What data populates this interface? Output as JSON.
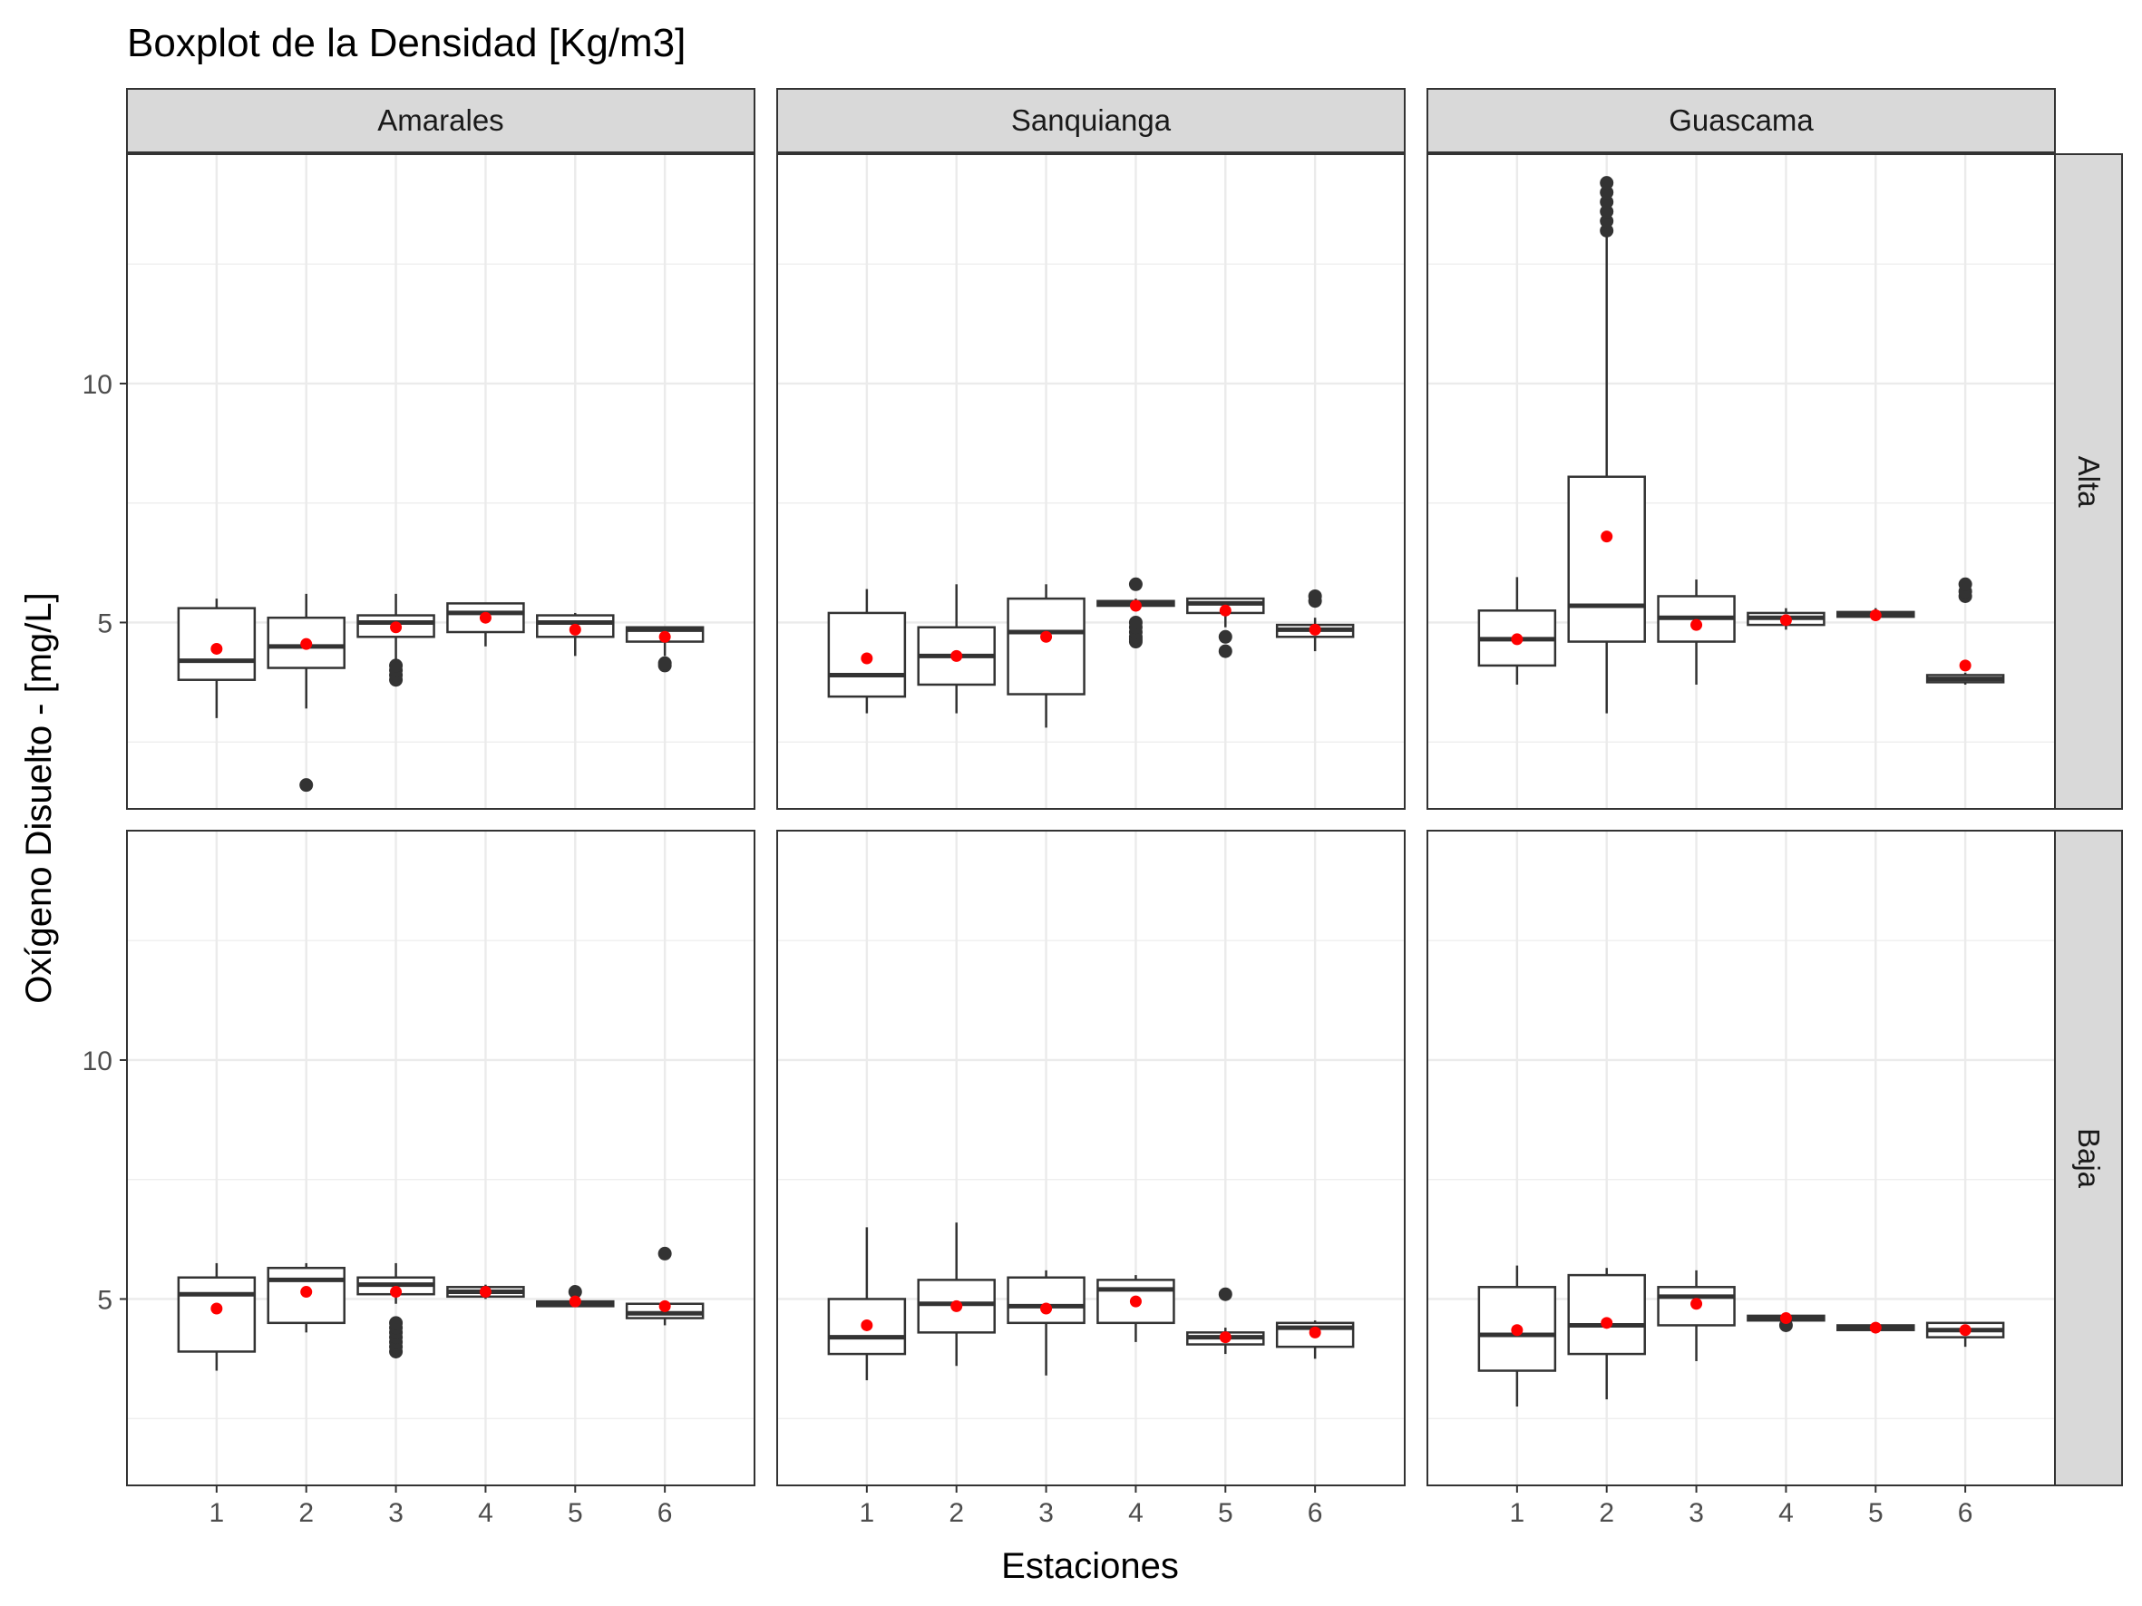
{
  "chart_data": {
    "type": "boxplot",
    "title": "Boxplot de la Densidad [Kg/m3]",
    "xlabel": "Estaciones",
    "ylabel": "Oxígeno Disuelto - [mg/L]",
    "categories": [
      "1",
      "2",
      "3",
      "4",
      "5",
      "6"
    ],
    "yticks": [
      5,
      10
    ],
    "ylim": [
      1.1,
      14.8
    ],
    "columns": [
      "Amarales",
      "Sanquianga",
      "Guascama"
    ],
    "rows": [
      "Alta",
      "Baja"
    ],
    "grid": true,
    "colors": {
      "mean": "#ff0000",
      "box": "#333333",
      "outlier": "#333333",
      "strip": "#d9d9d9",
      "grid": "#ebebeb"
    },
    "panels": [
      {
        "column": "Amarales",
        "row": "Alta",
        "boxes": [
          {
            "station": "1",
            "min": 3.0,
            "q1": 3.8,
            "median": 4.2,
            "q3": 5.3,
            "max": 5.5,
            "mean": 4.45,
            "outliers": []
          },
          {
            "station": "2",
            "min": 3.2,
            "q1": 4.05,
            "median": 4.5,
            "q3": 5.1,
            "max": 5.6,
            "mean": 4.55,
            "outliers": [
              1.6
            ]
          },
          {
            "station": "3",
            "min": 4.2,
            "q1": 4.7,
            "median": 5.0,
            "q3": 5.15,
            "max": 5.6,
            "mean": 4.9,
            "outliers": [
              3.8,
              3.9,
              4.0,
              4.1
            ]
          },
          {
            "station": "4",
            "min": 4.5,
            "q1": 4.8,
            "median": 5.2,
            "q3": 5.4,
            "max": 5.4,
            "mean": 5.1,
            "outliers": []
          },
          {
            "station": "5",
            "min": 4.3,
            "q1": 4.7,
            "median": 5.0,
            "q3": 5.15,
            "max": 5.2,
            "mean": 4.85,
            "outliers": []
          },
          {
            "station": "6",
            "min": 4.3,
            "q1": 4.6,
            "median": 4.85,
            "q3": 4.9,
            "max": 4.9,
            "mean": 4.7,
            "outliers": [
              4.1,
              4.15
            ]
          }
        ]
      },
      {
        "column": "Sanquianga",
        "row": "Alta",
        "boxes": [
          {
            "station": "1",
            "min": 3.1,
            "q1": 3.45,
            "median": 3.9,
            "q3": 5.2,
            "max": 5.7,
            "mean": 4.25,
            "outliers": []
          },
          {
            "station": "2",
            "min": 3.1,
            "q1": 3.7,
            "median": 4.3,
            "q3": 4.9,
            "max": 5.8,
            "mean": 4.3,
            "outliers": []
          },
          {
            "station": "3",
            "min": 2.8,
            "q1": 3.5,
            "median": 4.8,
            "q3": 5.5,
            "max": 5.8,
            "mean": 4.7,
            "outliers": []
          },
          {
            "station": "4",
            "min": 5.3,
            "q1": 5.35,
            "median": 5.4,
            "q3": 5.45,
            "max": 5.5,
            "mean": 5.35,
            "outliers": [
              4.6,
              4.65,
              4.7,
              4.8,
              4.9,
              5.0,
              5.8
            ]
          },
          {
            "station": "5",
            "min": 4.9,
            "q1": 5.2,
            "median": 5.4,
            "q3": 5.5,
            "max": 5.5,
            "mean": 5.25,
            "outliers": [
              4.4,
              4.7
            ]
          },
          {
            "station": "6",
            "min": 4.4,
            "q1": 4.7,
            "median": 4.85,
            "q3": 4.95,
            "max": 5.1,
            "mean": 4.85,
            "outliers": [
              5.45,
              5.55
            ]
          }
        ]
      },
      {
        "column": "Guascama",
        "row": "Alta",
        "boxes": [
          {
            "station": "1",
            "min": 3.7,
            "q1": 4.1,
            "median": 4.65,
            "q3": 5.25,
            "max": 5.95,
            "mean": 4.65,
            "outliers": []
          },
          {
            "station": "2",
            "min": 3.1,
            "q1": 4.6,
            "median": 5.35,
            "q3": 8.05,
            "max": 13.2,
            "mean": 6.8,
            "outliers": [
              13.2,
              13.4,
              13.6,
              13.8,
              14.0,
              14.2
            ]
          },
          {
            "station": "3",
            "min": 3.7,
            "q1": 4.6,
            "median": 5.1,
            "q3": 5.55,
            "max": 5.9,
            "mean": 4.95,
            "outliers": []
          },
          {
            "station": "4",
            "min": 4.85,
            "q1": 4.95,
            "median": 5.1,
            "q3": 5.2,
            "max": 5.3,
            "mean": 5.05,
            "outliers": []
          },
          {
            "station": "5",
            "min": 5.1,
            "q1": 5.12,
            "median": 5.18,
            "q3": 5.22,
            "max": 5.3,
            "mean": 5.15,
            "outliers": []
          },
          {
            "station": "6",
            "min": 3.7,
            "q1": 3.75,
            "median": 3.82,
            "q3": 3.9,
            "max": 3.95,
            "mean": 4.1,
            "outliers": [
              5.55,
              5.65,
              5.8
            ]
          }
        ]
      },
      {
        "column": "Amarales",
        "row": "Baja",
        "boxes": [
          {
            "station": "1",
            "min": 3.5,
            "q1": 3.9,
            "median": 5.1,
            "q3": 5.45,
            "max": 5.75,
            "mean": 4.8,
            "outliers": []
          },
          {
            "station": "2",
            "min": 4.3,
            "q1": 4.5,
            "median": 5.4,
            "q3": 5.65,
            "max": 5.75,
            "mean": 5.15,
            "outliers": []
          },
          {
            "station": "3",
            "min": 4.9,
            "q1": 5.1,
            "median": 5.3,
            "q3": 5.45,
            "max": 5.75,
            "mean": 5.15,
            "outliers": [
              3.9,
              4.0,
              4.1,
              4.2,
              4.3,
              4.4,
              4.5
            ]
          },
          {
            "station": "4",
            "min": 5.0,
            "q1": 5.05,
            "median": 5.15,
            "q3": 5.25,
            "max": 5.3,
            "mean": 5.15,
            "outliers": []
          },
          {
            "station": "5",
            "min": 4.85,
            "q1": 4.85,
            "median": 4.9,
            "q3": 4.95,
            "max": 4.95,
            "mean": 4.95,
            "outliers": [
              5.15
            ]
          },
          {
            "station": "6",
            "min": 4.45,
            "q1": 4.6,
            "median": 4.7,
            "q3": 4.9,
            "max": 4.95,
            "mean": 4.85,
            "outliers": [
              5.95
            ]
          }
        ]
      },
      {
        "column": "Sanquianga",
        "row": "Baja",
        "boxes": [
          {
            "station": "1",
            "min": 3.3,
            "q1": 3.85,
            "median": 4.2,
            "q3": 5.0,
            "max": 6.5,
            "mean": 4.45,
            "outliers": []
          },
          {
            "station": "2",
            "min": 3.6,
            "q1": 4.3,
            "median": 4.9,
            "q3": 5.4,
            "max": 6.6,
            "mean": 4.85,
            "outliers": []
          },
          {
            "station": "3",
            "min": 3.4,
            "q1": 4.5,
            "median": 4.85,
            "q3": 5.45,
            "max": 5.6,
            "mean": 4.8,
            "outliers": []
          },
          {
            "station": "4",
            "min": 4.1,
            "q1": 4.5,
            "median": 5.2,
            "q3": 5.4,
            "max": 5.5,
            "mean": 4.95,
            "outliers": []
          },
          {
            "station": "5",
            "min": 3.85,
            "q1": 4.05,
            "median": 4.2,
            "q3": 4.3,
            "max": 4.4,
            "mean": 4.2,
            "outliers": [
              5.1
            ]
          },
          {
            "station": "6",
            "min": 3.75,
            "q1": 4.0,
            "median": 4.4,
            "q3": 4.5,
            "max": 4.55,
            "mean": 4.3,
            "outliers": []
          }
        ]
      },
      {
        "column": "Guascama",
        "row": "Baja",
        "boxes": [
          {
            "station": "1",
            "min": 2.75,
            "q1": 3.5,
            "median": 4.25,
            "q3": 5.25,
            "max": 5.7,
            "mean": 4.35,
            "outliers": []
          },
          {
            "station": "2",
            "min": 2.9,
            "q1": 3.85,
            "median": 4.45,
            "q3": 5.5,
            "max": 5.65,
            "mean": 4.5,
            "outliers": []
          },
          {
            "station": "3",
            "min": 3.7,
            "q1": 4.45,
            "median": 5.05,
            "q3": 5.25,
            "max": 5.6,
            "mean": 4.9,
            "outliers": []
          },
          {
            "station": "4",
            "min": 4.5,
            "q1": 4.55,
            "median": 4.6,
            "q3": 4.65,
            "max": 4.65,
            "mean": 4.6,
            "outliers": [
              4.45
            ]
          },
          {
            "station": "5",
            "min": 4.35,
            "q1": 4.35,
            "median": 4.4,
            "q3": 4.45,
            "max": 4.45,
            "mean": 4.4,
            "outliers": []
          },
          {
            "station": "6",
            "min": 4.0,
            "q1": 4.2,
            "median": 4.35,
            "q3": 4.5,
            "max": 4.5,
            "mean": 4.35,
            "outliers": []
          }
        ]
      }
    ]
  }
}
